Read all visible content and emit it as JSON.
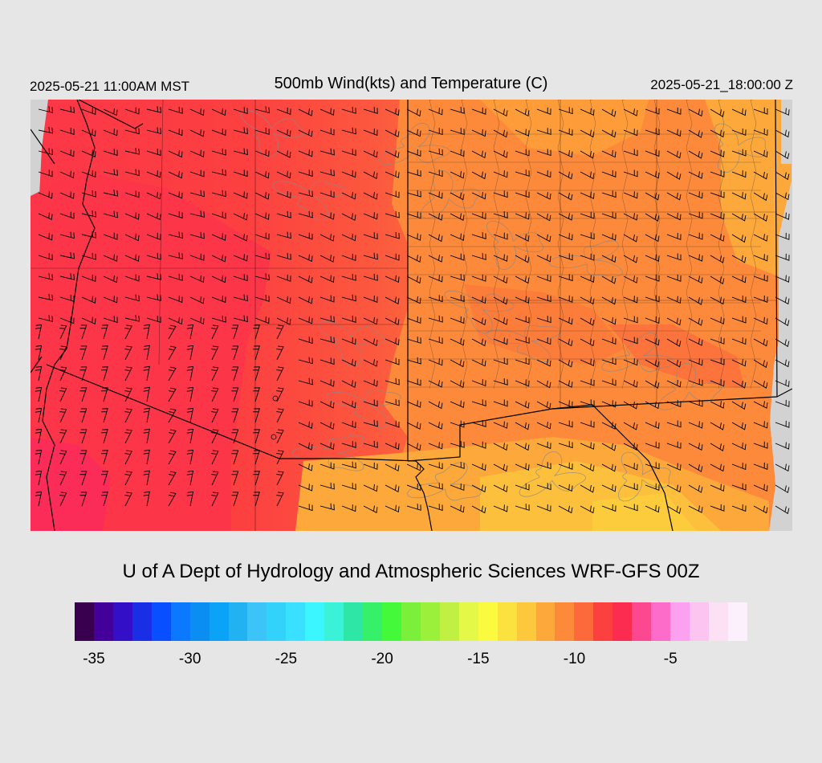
{
  "header": {
    "valid_time_local": "2025-05-21 11:00AM MST",
    "title": "500mb Wind(kts) and Temperature (C)",
    "valid_time_utc": "2025-05-21_18:00:00 Z"
  },
  "credit": "U of A Dept of Hydrology and Atmospheric Sciences WRF-GFS 00Z",
  "colorbar": {
    "colors": [
      "#3a0050",
      "#43009a",
      "#3310c8",
      "#1a2ee6",
      "#0850ff",
      "#0a78ff",
      "#0a8ef2",
      "#0aa3f5",
      "#22b2f2",
      "#3cc4f8",
      "#32d2fa",
      "#3ae0ff",
      "#3cf6ff",
      "#3af2d8",
      "#2ee6a6",
      "#36f06a",
      "#44f83a",
      "#7af03a",
      "#9af03a",
      "#c0f042",
      "#e4f848",
      "#fafa3e",
      "#fce23e",
      "#fcc83c",
      "#fca83a",
      "#fc8a3a",
      "#fc6a3c",
      "#fc4040",
      "#fc2c50",
      "#fc4890",
      "#fc6cc8",
      "#fca0f0",
      "#fcc4f0",
      "#fce0f4",
      "#fcf0fc"
    ],
    "tick_labels": [
      "-35",
      "-30",
      "-25",
      "-20",
      "-15",
      "-10",
      "-5"
    ]
  },
  "map_colors": {
    "no_data": "#d2d2d2",
    "temp_bands": [
      "#fc2c50",
      "#fc4040",
      "#fc6a3c",
      "#fc8a3a",
      "#fca83a",
      "#fcc83c"
    ],
    "contour": "#888888",
    "borders": "#000000",
    "wind_barb": "#000000"
  }
}
